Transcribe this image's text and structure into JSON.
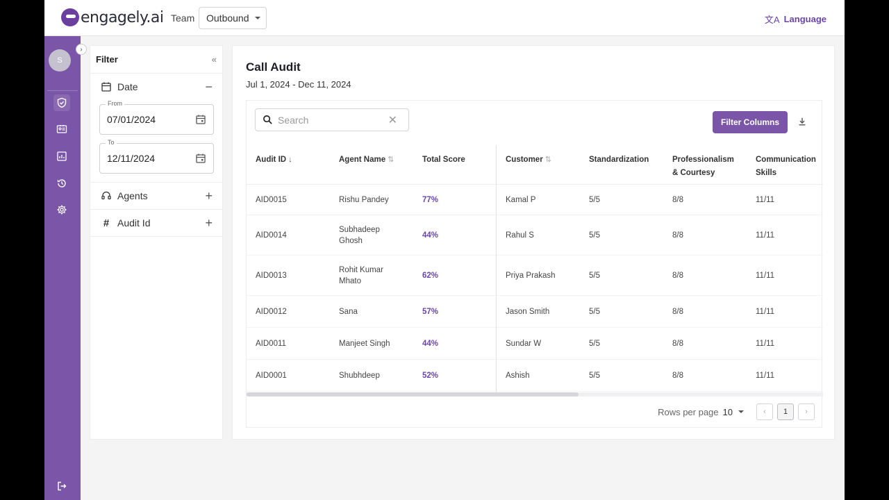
{
  "header": {
    "logo_text": "engagely.ai",
    "team_label": "Team",
    "team_value": "Outbound",
    "language_label": "Language"
  },
  "sidebar": {
    "avatar_initial": "S",
    "items": [
      {
        "icon": "shield-check-icon",
        "active": true
      },
      {
        "icon": "id-card-icon",
        "active": false
      },
      {
        "icon": "report-icon",
        "active": false
      },
      {
        "icon": "history-icon",
        "active": false
      },
      {
        "icon": "gear-icon",
        "active": false
      }
    ],
    "logout_icon": "logout-icon",
    "accent": "#7a55a8"
  },
  "filter": {
    "title": "Filter",
    "date_label": "Date",
    "from_label": "From",
    "from_value": "07/01/2024",
    "to_label": "To",
    "to_value": "12/11/2024",
    "agents_label": "Agents",
    "audit_id_label": "Audit Id"
  },
  "main": {
    "title": "Call Audit",
    "date_range": "Jul 1, 2024 - Dec 11, 2024",
    "search_placeholder": "Search",
    "filter_columns_label": "Filter Columns"
  },
  "table": {
    "columns": [
      "Audit ID",
      "Agent Name",
      "Total Score",
      "Customer",
      "Standardization",
      "Professionalism\n& Courtesy",
      "Communication\nSkills"
    ],
    "rows": [
      {
        "audit_id": "AID0015",
        "agent": "Rishu Pandey",
        "score": "77%",
        "customer": "Kamal P",
        "std": "5/5",
        "prof": "8/8",
        "comm": "11/11"
      },
      {
        "audit_id": "AID0014",
        "agent": "Subhadeep\nGhosh",
        "score": "44%",
        "customer": "Rahul S",
        "std": "5/5",
        "prof": "8/8",
        "comm": "11/11"
      },
      {
        "audit_id": "AID0013",
        "agent": "Rohit Kumar\nMhato",
        "score": "62%",
        "customer": "Priya Prakash",
        "std": "5/5",
        "prof": "8/8",
        "comm": "11/11"
      },
      {
        "audit_id": "AID0012",
        "agent": "Sana",
        "score": "57%",
        "customer": "Jason Smith",
        "std": "5/5",
        "prof": "8/8",
        "comm": "11/11"
      },
      {
        "audit_id": "AID0011",
        "agent": "Manjeet Singh",
        "score": "44%",
        "customer": "Sundar W",
        "std": "5/5",
        "prof": "8/8",
        "comm": "11/11"
      },
      {
        "audit_id": "AID0001",
        "agent": "Shubhdeep",
        "score": "52%",
        "customer": "Ashish",
        "std": "5/5",
        "prof": "8/8",
        "comm": "11/11"
      }
    ]
  },
  "pagination": {
    "rows_per_page_label": "Rows per page",
    "rows_per_page_value": "10",
    "current_page": "1"
  }
}
